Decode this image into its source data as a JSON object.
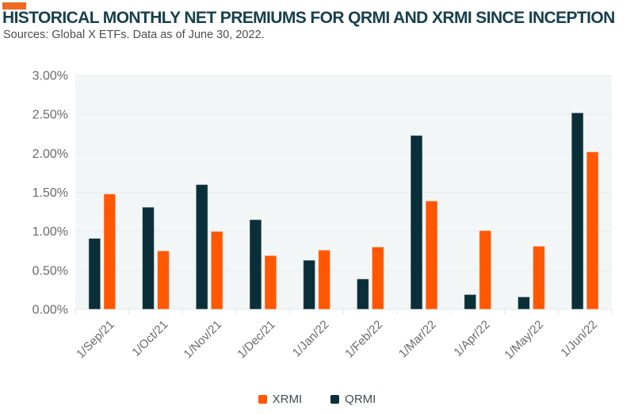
{
  "header": {
    "title": "HISTORICAL MONTHLY NET PREMIUMS FOR QRMI AND XRMI SINCE INCEPTION",
    "subtitle": "Sources: Global X ETFs. Data as of June 30, 2022.",
    "title_color": "#17404D",
    "accent_color": "#EC6A24"
  },
  "chart_data": {
    "type": "bar",
    "title": "Historical Monthly Net Premiums for QRMI and XRMI Since Inception",
    "categories": [
      "1/Sep/21",
      "1/Oct/21",
      "1/Nov/21",
      "1/Dec/21",
      "1/Jan/22",
      "1/Feb/22",
      "1/Mar/22",
      "1/Apr/22",
      "1/May/22",
      "1/Jun/22"
    ],
    "series": [
      {
        "name": "QRMI",
        "color": "#0A2F38",
        "values": [
          0.91,
          1.31,
          1.6,
          1.15,
          0.63,
          0.39,
          2.23,
          0.19,
          0.16,
          2.52
        ]
      },
      {
        "name": "XRMI",
        "color": "#FF5702",
        "values": [
          1.48,
          0.75,
          1.0,
          0.69,
          0.76,
          0.8,
          1.39,
          1.01,
          0.81,
          2.02
        ]
      }
    ],
    "unit": "%",
    "xlabel": "",
    "ylabel": "",
    "ylim": [
      0,
      3.0
    ],
    "ytick_step": 0.5,
    "ytick_labels": [
      "0.00%",
      "0.50%",
      "1.00%",
      "1.50%",
      "2.00%",
      "2.50%",
      "3.00%"
    ],
    "grid": true,
    "legend_position": "bottom",
    "legend_order": [
      "XRMI",
      "QRMI"
    ],
    "colors": {
      "plot_bg": "#F2F6F7",
      "grid": "#E6ECEE",
      "axis_line": "#E2E8EA",
      "tick": "#DDE3E6",
      "axis_label": "#6B6B6B",
      "legend_label": "#414D50"
    }
  }
}
